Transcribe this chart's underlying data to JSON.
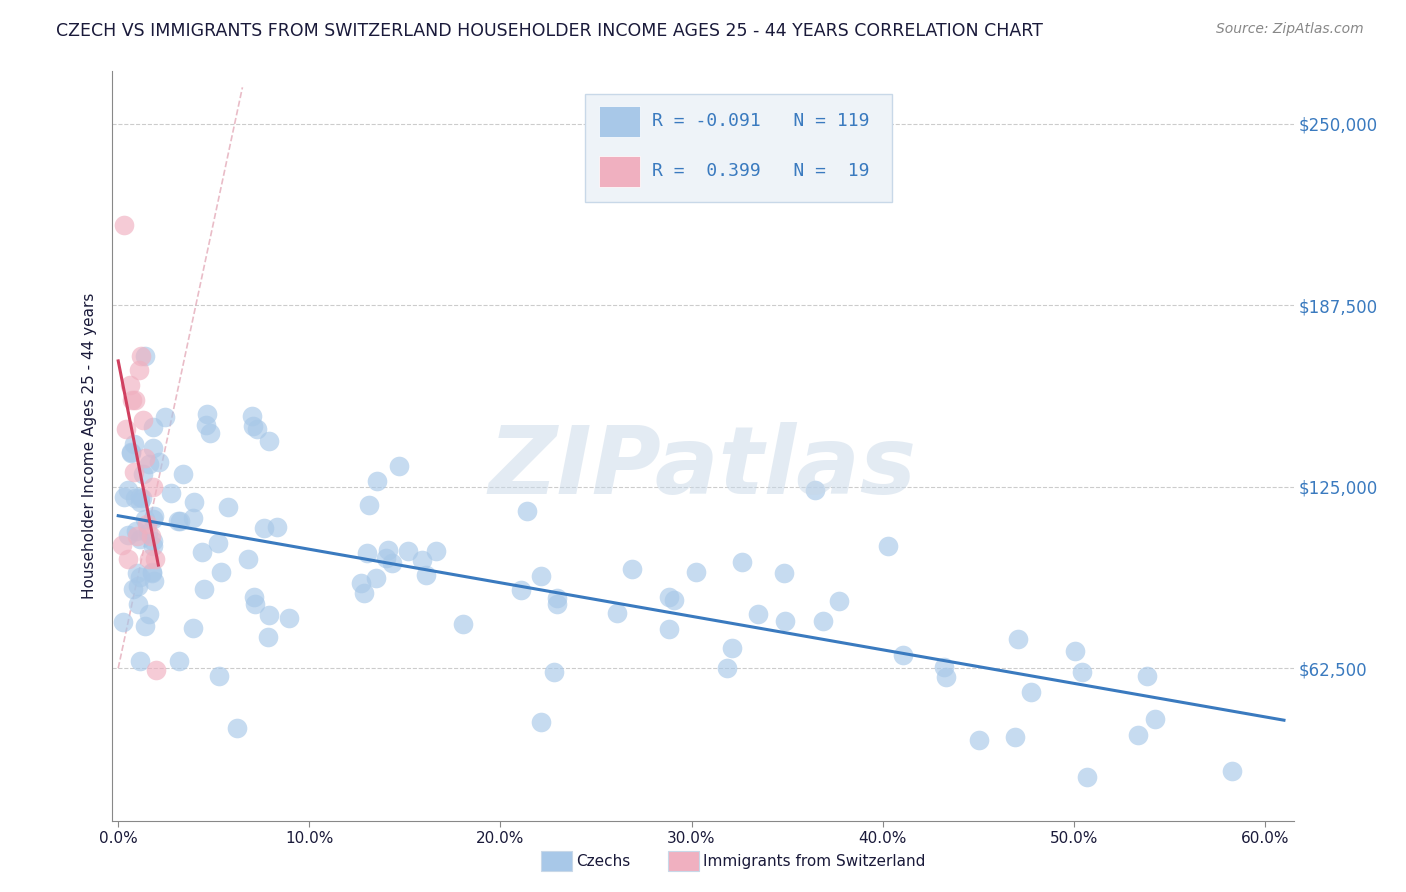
{
  "title": "CZECH VS IMMIGRANTS FROM SWITZERLAND HOUSEHOLDER INCOME AGES 25 - 44 YEARS CORRELATION CHART",
  "source": "Source: ZipAtlas.com",
  "ylabel": "Householder Income Ages 25 - 44 years",
  "ytick_labels": [
    "$62,500",
    "$125,000",
    "$187,500",
    "$250,000"
  ],
  "ytick_vals": [
    62500,
    125000,
    187500,
    250000
  ],
  "xlim": [
    -0.003,
    0.615
  ],
  "ylim": [
    10000,
    268000
  ],
  "czech_R": -0.091,
  "czech_N": 119,
  "swiss_R": 0.399,
  "swiss_N": 19,
  "czech_color": "#a8c8e8",
  "swiss_color": "#f0b0c0",
  "czech_line_color": "#3a7abf",
  "swiss_line_color": "#d04060",
  "background_color": "#ffffff",
  "grid_color": "#cccccc",
  "title_color": "#1a1a3a",
  "axis_label_color": "#1a1a3a",
  "tick_label_color": "#3a7abf",
  "watermark": "ZIPatlas",
  "legend_box_color": "#eef3f8",
  "legend_border_color": "#c8d8e8"
}
